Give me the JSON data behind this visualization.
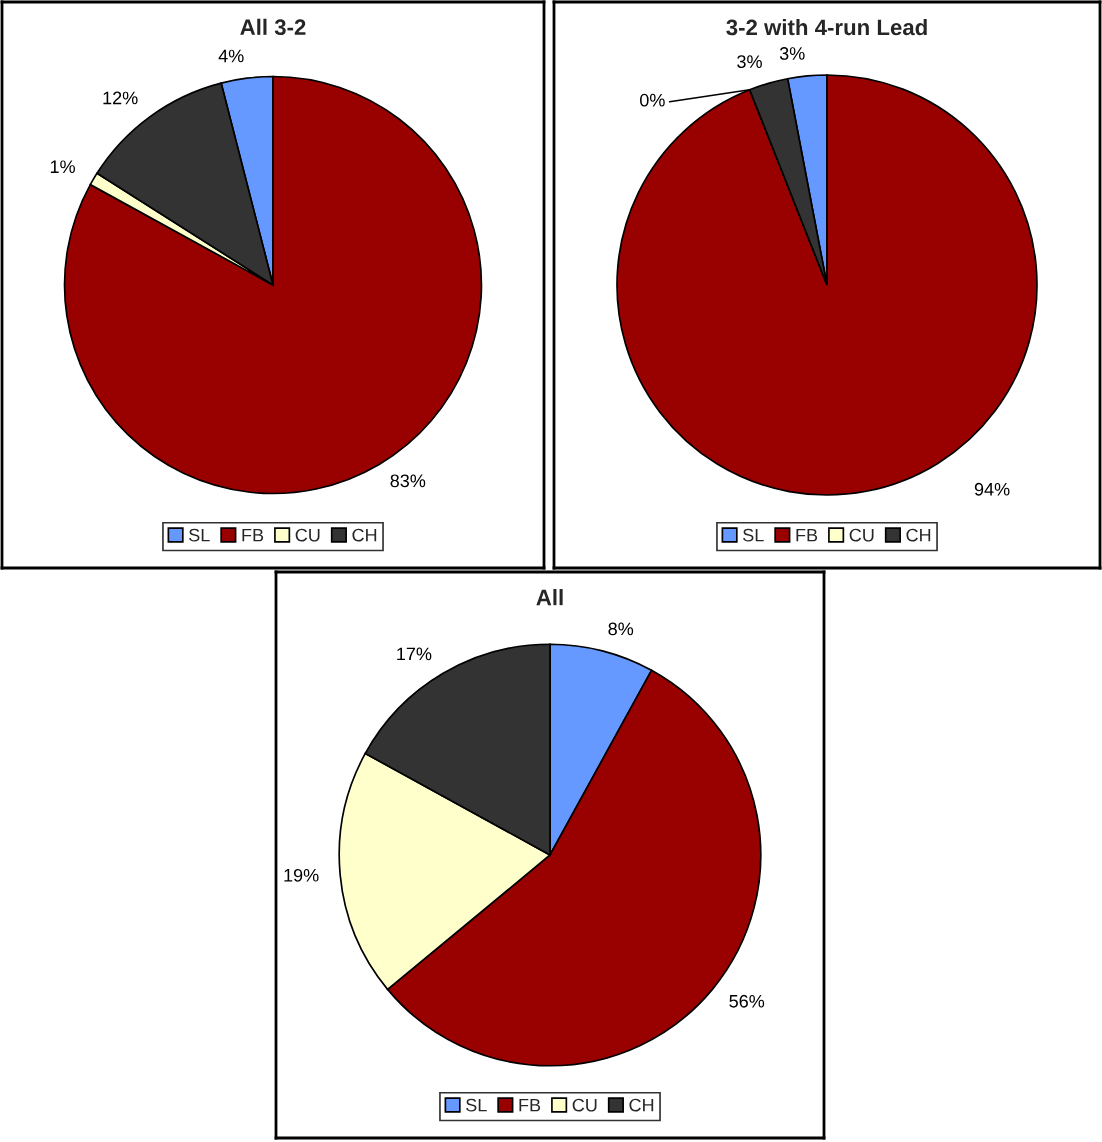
{
  "chart_data": [
    {
      "type": "pie",
      "title": "All 3-2",
      "categories": [
        "SL",
        "FB",
        "CU",
        "CH"
      ],
      "values": [
        4,
        83,
        1,
        12
      ],
      "value_labels": [
        "4%",
        "83%",
        "1%",
        "12%"
      ],
      "colors": [
        "#6699ff",
        "#990000",
        "#ffffcc",
        "#333333"
      ],
      "legend": "bottom"
    },
    {
      "type": "pie",
      "title": "3-2 with 4-run Lead",
      "categories": [
        "SL",
        "FB",
        "CU",
        "CH"
      ],
      "values": [
        3,
        94,
        0,
        3
      ],
      "value_labels": [
        "3%",
        "94%",
        "0%",
        "3%"
      ],
      "colors": [
        "#6699ff",
        "#990000",
        "#ffffcc",
        "#333333"
      ],
      "legend": "bottom"
    },
    {
      "type": "pie",
      "title": "All",
      "categories": [
        "SL",
        "FB",
        "CU",
        "CH"
      ],
      "values": [
        8,
        56,
        19,
        17
      ],
      "value_labels": [
        "8%",
        "56%",
        "19%",
        "17%"
      ],
      "colors": [
        "#6699ff",
        "#990000",
        "#ffffcc",
        "#333333"
      ],
      "legend": "bottom"
    }
  ]
}
